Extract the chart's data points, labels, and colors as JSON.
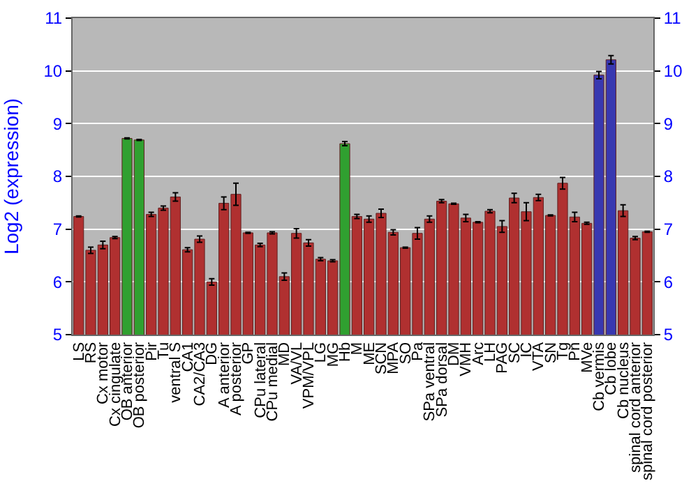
{
  "chart_data": {
    "type": "bar",
    "ylabel": "Log2 (expression)",
    "categories": [
      "LS",
      "RS",
      "Cx motor",
      "Cx cingulate",
      "OB anterior",
      "OB posterior",
      "Pir",
      "Tu",
      "ventral S",
      "CA1",
      "CA2/CA3",
      "DG",
      "A anterior",
      "A posterior",
      "GP",
      "CPu lateral",
      "CPu medial",
      "MD",
      "VA/VL",
      "VPM/VPL",
      "LG",
      "MG",
      "Hb",
      "M",
      "ME",
      "SCN",
      "MPA",
      "SO",
      "Pa",
      "SPa ventral",
      "SPa dorsal",
      "DM",
      "VMH",
      "Arc",
      "LH",
      "PAG",
      "SC",
      "IC",
      "VTA",
      "SN",
      "Tg",
      "Pn",
      "MVe",
      "Cb vermis",
      "Cb lobe",
      "Cb nucleus",
      "spinal cord anterior",
      "spinal cord posterior"
    ],
    "values": [
      7.24,
      6.6,
      6.7,
      6.84,
      8.72,
      8.69,
      7.28,
      7.4,
      7.61,
      6.61,
      6.81,
      6.0,
      7.49,
      7.66,
      6.93,
      6.7,
      6.93,
      6.1,
      6.92,
      6.74,
      6.43,
      6.4,
      8.62,
      7.24,
      7.19,
      7.3,
      6.94,
      6.65,
      6.92,
      7.19,
      7.53,
      7.48,
      7.21,
      7.13,
      7.34,
      7.05,
      7.59,
      7.33,
      7.6,
      7.26,
      7.87,
      7.23,
      7.11,
      9.92,
      10.21,
      7.35,
      6.83,
      6.95
    ],
    "errors": [
      0.01,
      0.06,
      0.07,
      0.02,
      0.01,
      0.01,
      0.04,
      0.04,
      0.08,
      0.04,
      0.06,
      0.06,
      0.12,
      0.21,
      0.01,
      0.03,
      0.02,
      0.07,
      0.09,
      0.06,
      0.03,
      0.02,
      0.04,
      0.04,
      0.06,
      0.08,
      0.05,
      0.01,
      0.11,
      0.06,
      0.03,
      0.01,
      0.07,
      0.01,
      0.03,
      0.11,
      0.09,
      0.17,
      0.06,
      0.01,
      0.11,
      0.09,
      0.02,
      0.07,
      0.08,
      0.11,
      0.03,
      0.01
    ],
    "colors": [
      "#b03030",
      "#b03030",
      "#b03030",
      "#b03030",
      "#30a030",
      "#30a030",
      "#b03030",
      "#b03030",
      "#b03030",
      "#b03030",
      "#b03030",
      "#b03030",
      "#b03030",
      "#b03030",
      "#b03030",
      "#b03030",
      "#b03030",
      "#b03030",
      "#b03030",
      "#b03030",
      "#b03030",
      "#b03030",
      "#30a030",
      "#b03030",
      "#b03030",
      "#b03030",
      "#b03030",
      "#b03030",
      "#b03030",
      "#b03030",
      "#b03030",
      "#b03030",
      "#b03030",
      "#b03030",
      "#b03030",
      "#b03030",
      "#b03030",
      "#b03030",
      "#b03030",
      "#b03030",
      "#b03030",
      "#b03030",
      "#b03030",
      "#3838b0",
      "#3838b0",
      "#b03030",
      "#b03030",
      "#b03030"
    ],
    "ylim": [
      5,
      11
    ],
    "yticks": [
      5,
      6,
      7,
      8,
      9,
      10,
      11
    ],
    "y2lim": [
      5,
      11
    ],
    "y2ticks": [
      5,
      6,
      7,
      8,
      9,
      10,
      11
    ],
    "grid": "y"
  }
}
